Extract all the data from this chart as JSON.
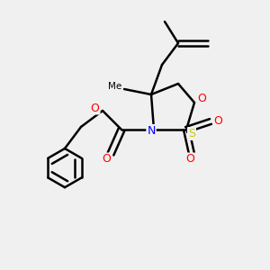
{
  "bg_color": "#f0f0f0",
  "atom_colors": {
    "C": "#000000",
    "N": "#0000ff",
    "O": "#ff0000",
    "S": "#cccc00"
  },
  "bond_color": "#000000",
  "bond_width": 1.8,
  "figsize": [
    3.0,
    3.0
  ],
  "dpi": 100,
  "xlim": [
    0,
    10
  ],
  "ylim": [
    0,
    10
  ]
}
